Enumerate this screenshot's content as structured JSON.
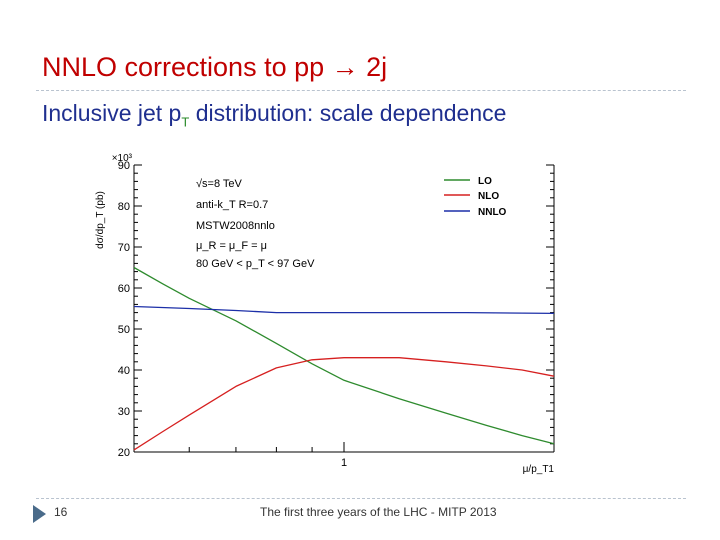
{
  "slide": {
    "title": "NNLO corrections to pp → 2j",
    "subtitle_main": "Inclusive jet p",
    "subtitle_sub": "T",
    "subtitle_rest": " distribution: scale dependence",
    "page_number": "16",
    "footer": "The first three years of the LHC - MITP 2013"
  },
  "chart_data": {
    "type": "line",
    "ylabel": "dσ/dp_T (pb)",
    "y_multiplier": "×10³",
    "xlabel": "μ/p_T1",
    "ylim": [
      20,
      90
    ],
    "yticks": [
      20,
      30,
      40,
      50,
      60,
      70,
      80,
      90
    ],
    "xlim": [
      0.5,
      2.0
    ],
    "x_scale": "log",
    "xtick_labels": [
      {
        "value": 1,
        "label": "1"
      }
    ],
    "annotations": [
      "√s=8 TeV",
      "anti-k_T R=0.7",
      "MSTW2008nnlo",
      "μ_R = μ_F = μ",
      "80 GeV < p_T < 97 GeV"
    ],
    "series": [
      {
        "name": "LO",
        "color": "#2e8b2e",
        "x": [
          0.5,
          0.55,
          0.6,
          0.7,
          0.8,
          0.9,
          1.0,
          1.2,
          1.4,
          1.6,
          1.8,
          2.0
        ],
        "y": [
          65,
          61,
          57.5,
          52,
          46.5,
          41.5,
          37.5,
          33,
          29.5,
          26.5,
          24,
          22
        ]
      },
      {
        "name": "NLO",
        "color": "#d62020",
        "x": [
          0.5,
          0.55,
          0.6,
          0.7,
          0.8,
          0.9,
          1.0,
          1.2,
          1.4,
          1.6,
          1.8,
          2.0
        ],
        "y": [
          20.5,
          25,
          29,
          36,
          40.5,
          42.5,
          43,
          43,
          42,
          41,
          40,
          38.5
        ]
      },
      {
        "name": "NNLO",
        "color": "#1c2fa8",
        "x": [
          0.5,
          0.6,
          0.7,
          0.8,
          1.0,
          1.2,
          1.5,
          2.0
        ],
        "y": [
          55.5,
          55,
          54.5,
          54,
          54,
          54,
          54,
          53.8
        ]
      }
    ]
  }
}
